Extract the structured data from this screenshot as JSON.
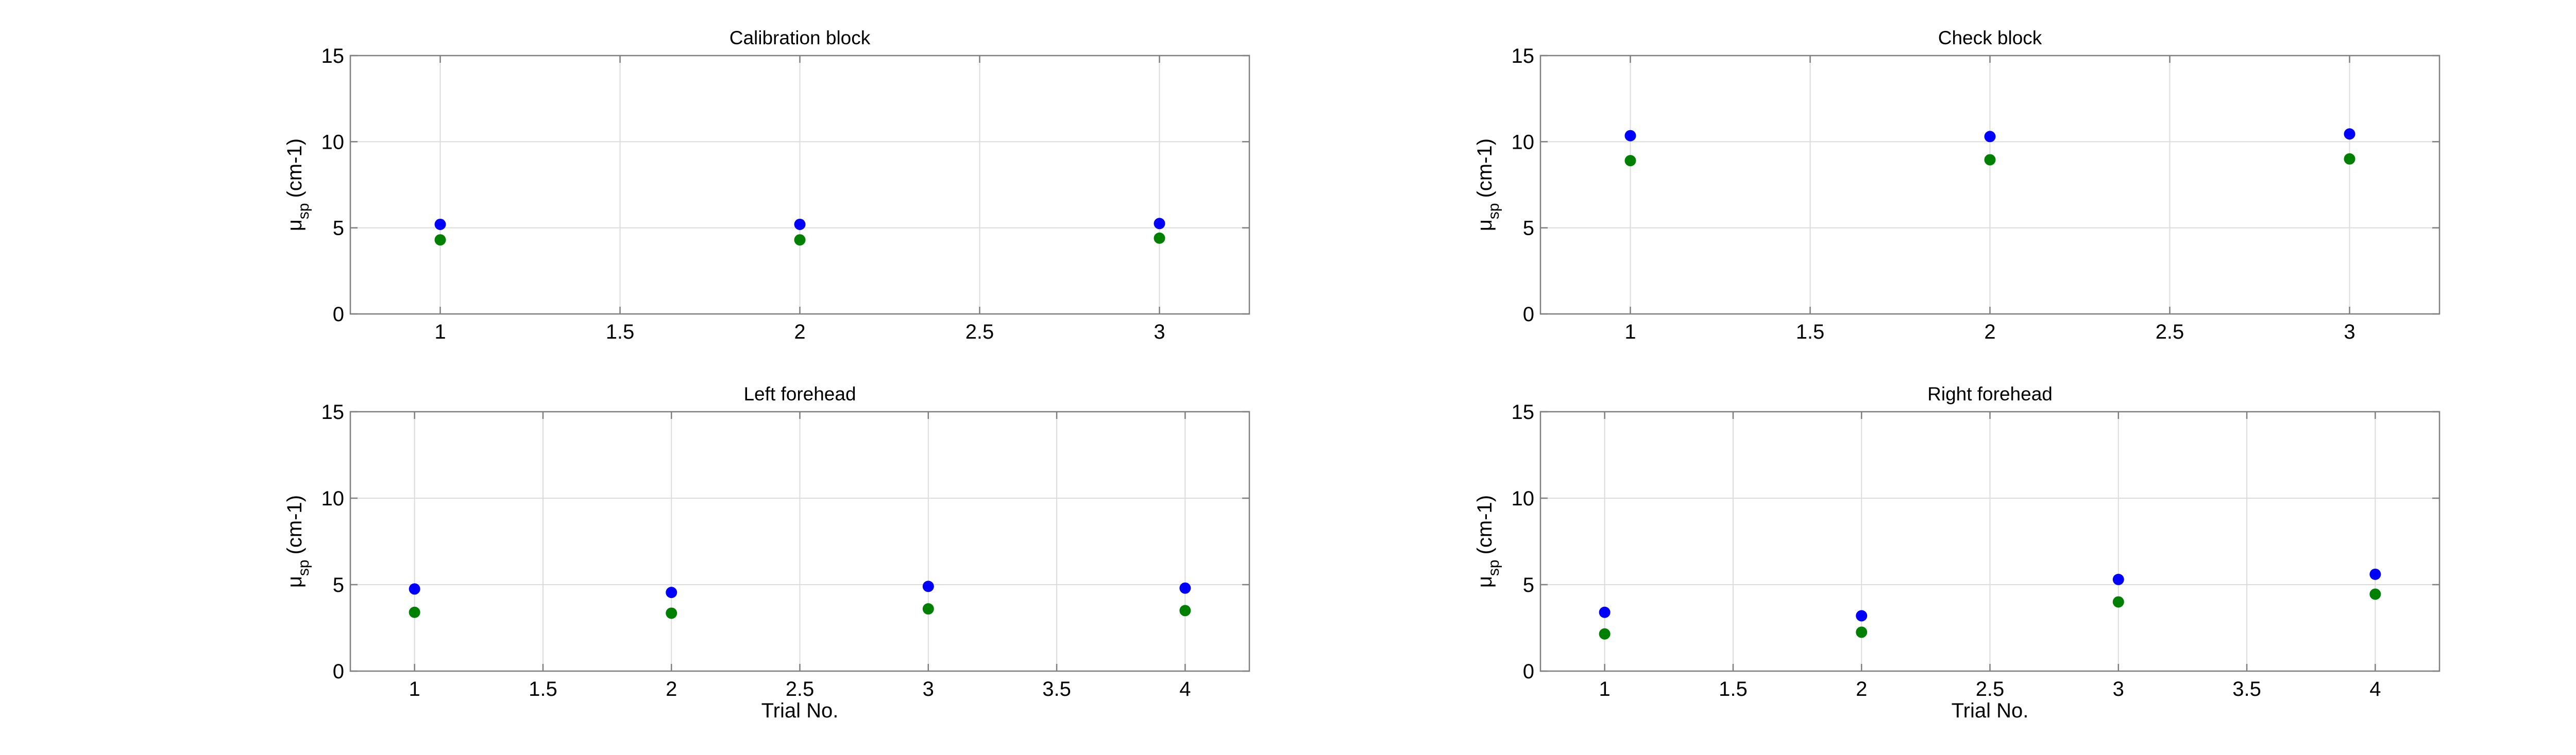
{
  "colors": {
    "series_blue": "#0000ff",
    "series_green": "#008000",
    "grid": "#dcdcdc",
    "axes": "#7f7f7f"
  },
  "chart_data": [
    {
      "type": "scatter",
      "title": "Calibration block",
      "ylabel": {
        "symbol": "μ",
        "subscript": "sp",
        "unit": "(cm-1)"
      },
      "xlabel": "",
      "xlim": [
        0.75,
        3.25
      ],
      "ylim": [
        0,
        15
      ],
      "xticks": [
        1,
        1.5,
        2,
        2.5,
        3
      ],
      "xtick_labels": [
        "1",
        "1.5",
        "2",
        "2.5",
        "3"
      ],
      "yticks": [
        0,
        5,
        10,
        15
      ],
      "ytick_labels": [
        "0",
        "5",
        "10",
        "15"
      ],
      "grid": true,
      "x": [
        1,
        2,
        3
      ],
      "series": [
        {
          "color": "#0000ff",
          "values": [
            5.2,
            5.2,
            5.25
          ]
        },
        {
          "color": "#008000",
          "values": [
            4.3,
            4.3,
            4.4
          ]
        }
      ]
    },
    {
      "type": "scatter",
      "title": "Check block",
      "ylabel": {
        "symbol": "μ",
        "subscript": "sp",
        "unit": "(cm-1)"
      },
      "xlabel": "",
      "xlim": [
        0.75,
        3.25
      ],
      "ylim": [
        0,
        15
      ],
      "xticks": [
        1,
        1.5,
        2,
        2.5,
        3
      ],
      "xtick_labels": [
        "1",
        "1.5",
        "2",
        "2.5",
        "3"
      ],
      "yticks": [
        0,
        5,
        10,
        15
      ],
      "ytick_labels": [
        "0",
        "5",
        "10",
        "15"
      ],
      "grid": true,
      "x": [
        1,
        2,
        3
      ],
      "series": [
        {
          "color": "#0000ff",
          "values": [
            10.35,
            10.3,
            10.45
          ]
        },
        {
          "color": "#008000",
          "values": [
            8.9,
            8.95,
            9.0
          ]
        }
      ]
    },
    {
      "type": "scatter",
      "title": "Left forehead",
      "ylabel": {
        "symbol": "μ",
        "subscript": "sp",
        "unit": "(cm-1)"
      },
      "xlabel": "Trial No.",
      "xlim": [
        0.75,
        4.25
      ],
      "ylim": [
        0,
        15
      ],
      "xticks": [
        1,
        1.5,
        2,
        2.5,
        3,
        3.5,
        4
      ],
      "xtick_labels": [
        "1",
        "1.5",
        "2",
        "2.5",
        "3",
        "3.5",
        "4"
      ],
      "yticks": [
        0,
        5,
        10,
        15
      ],
      "ytick_labels": [
        "0",
        "5",
        "10",
        "15"
      ],
      "grid": true,
      "x": [
        1,
        2,
        3,
        4
      ],
      "series": [
        {
          "color": "#0000ff",
          "values": [
            4.75,
            4.55,
            4.9,
            4.8
          ]
        },
        {
          "color": "#008000",
          "values": [
            3.4,
            3.35,
            3.6,
            3.5
          ]
        }
      ]
    },
    {
      "type": "scatter",
      "title": "Right forehead",
      "ylabel": {
        "symbol": "μ",
        "subscript": "sp",
        "unit": "(cm-1)"
      },
      "xlabel": "Trial No.",
      "xlim": [
        0.75,
        4.25
      ],
      "ylim": [
        0,
        15
      ],
      "xticks": [
        1,
        1.5,
        2,
        2.5,
        3,
        3.5,
        4
      ],
      "xtick_labels": [
        "1",
        "1.5",
        "2",
        "2.5",
        "3",
        "3.5",
        "4"
      ],
      "yticks": [
        0,
        5,
        10,
        15
      ],
      "ytick_labels": [
        "0",
        "5",
        "10",
        "15"
      ],
      "grid": true,
      "x": [
        1,
        2,
        3,
        4
      ],
      "series": [
        {
          "color": "#0000ff",
          "values": [
            3.4,
            3.2,
            5.3,
            5.6
          ]
        },
        {
          "color": "#008000",
          "values": [
            2.15,
            2.25,
            4.0,
            4.45
          ]
        }
      ]
    }
  ]
}
